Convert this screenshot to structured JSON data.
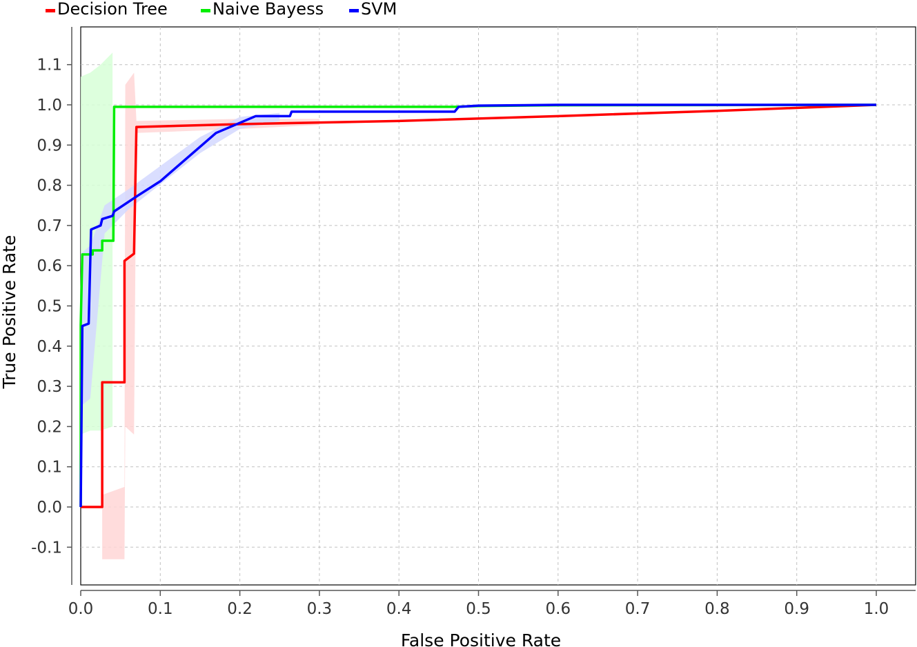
{
  "chart_data": {
    "type": "line",
    "xlabel": "False Positive Rate",
    "ylabel": "True Positive Rate",
    "xlim": [
      0.0,
      1.0
    ],
    "ylim": [
      -0.15,
      1.2
    ],
    "x_ticks": [
      "0.0",
      "0.1",
      "0.2",
      "0.3",
      "0.4",
      "0.5",
      "0.6",
      "0.7",
      "0.8",
      "0.9",
      "1.0"
    ],
    "y_ticks": [
      "-0.1",
      "0.0",
      "0.1",
      "0.2",
      "0.3",
      "0.4",
      "0.5",
      "0.6",
      "0.7",
      "0.8",
      "0.9",
      "1.0",
      "1.1"
    ],
    "grid": true,
    "legend_position": "top-left, above plot",
    "series": [
      {
        "name": "Decision Tree",
        "color": "#ff0000",
        "band_color": "#ffd6d6",
        "points": [
          [
            0.0,
            0.0
          ],
          [
            0.027,
            0.0
          ],
          [
            0.027,
            0.31
          ],
          [
            0.055,
            0.31
          ],
          [
            0.055,
            0.612
          ],
          [
            0.067,
            0.63
          ],
          [
            0.07,
            0.945
          ],
          [
            0.2,
            0.952
          ],
          [
            0.4,
            0.96
          ],
          [
            0.6,
            0.972
          ],
          [
            0.8,
            0.985
          ],
          [
            1.0,
            1.0
          ]
        ],
        "band": [
          [
            0.027,
            -0.13,
            0.03
          ],
          [
            0.055,
            -0.13,
            0.05
          ],
          [
            0.056,
            0.2,
            1.05
          ],
          [
            0.067,
            0.18,
            1.08
          ],
          [
            0.07,
            0.93,
            0.96
          ],
          [
            0.2,
            0.94,
            0.965
          ],
          [
            0.3,
            0.95,
            0.965
          ]
        ]
      },
      {
        "name": "Naive Bayess",
        "color": "#00ee00",
        "band_color": "#d7ffd7",
        "points": [
          [
            0.0,
            0.0
          ],
          [
            0.0,
            0.453
          ],
          [
            0.002,
            0.628
          ],
          [
            0.015,
            0.628
          ],
          [
            0.015,
            0.638
          ],
          [
            0.027,
            0.638
          ],
          [
            0.027,
            0.662
          ],
          [
            0.041,
            0.662
          ],
          [
            0.042,
            0.995
          ],
          [
            0.47,
            0.995
          ],
          [
            0.5,
            0.997
          ],
          [
            0.6,
            0.999
          ],
          [
            1.0,
            1.0
          ]
        ],
        "band": [
          [
            0.0,
            0.18,
            1.07
          ],
          [
            0.012,
            0.19,
            1.08
          ],
          [
            0.025,
            0.19,
            1.1
          ],
          [
            0.04,
            0.2,
            1.13
          ]
        ]
      },
      {
        "name": "SVM",
        "color": "#0000ff",
        "band_color": "#d4d8ff",
        "points": [
          [
            0.0,
            0.0
          ],
          [
            0.002,
            0.45
          ],
          [
            0.01,
            0.456
          ],
          [
            0.013,
            0.69
          ],
          [
            0.025,
            0.7
          ],
          [
            0.027,
            0.716
          ],
          [
            0.04,
            0.724
          ],
          [
            0.042,
            0.735
          ],
          [
            0.07,
            0.772
          ],
          [
            0.1,
            0.81
          ],
          [
            0.17,
            0.93
          ],
          [
            0.22,
            0.972
          ],
          [
            0.263,
            0.972
          ],
          [
            0.265,
            0.983
          ],
          [
            0.47,
            0.983
          ],
          [
            0.475,
            0.995
          ],
          [
            0.5,
            0.998
          ],
          [
            0.6,
            1.0
          ],
          [
            1.0,
            1.0
          ]
        ],
        "band": [
          [
            0.0,
            0.25,
            0.63
          ],
          [
            0.012,
            0.27,
            0.65
          ],
          [
            0.03,
            0.68,
            0.75
          ],
          [
            0.06,
            0.74,
            0.79
          ],
          [
            0.15,
            0.88,
            0.92
          ],
          [
            0.2,
            0.94,
            0.97
          ],
          [
            0.25,
            0.96,
            0.98
          ]
        ]
      }
    ]
  }
}
